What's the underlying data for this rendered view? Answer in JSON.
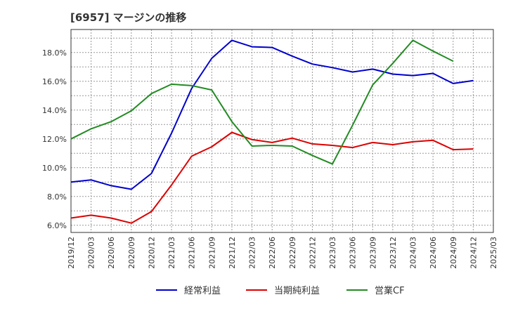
{
  "chart_data": {
    "type": "line",
    "title": "[6957]  マージンの推移",
    "xlabel": "",
    "ylabel": "",
    "ylim": [
      5.5,
      19.6
    ],
    "y_ticks": [
      "6.0%",
      "8.0%",
      "10.0%",
      "12.0%",
      "14.0%",
      "16.0%",
      "18.0%"
    ],
    "y_tick_values": [
      6,
      8,
      10,
      12,
      14,
      16,
      18
    ],
    "x_ticks": [
      "2019/12",
      "2020/03",
      "2020/06",
      "2020/09",
      "2020/12",
      "2021/03",
      "2021/06",
      "2021/09",
      "2021/12",
      "2022/03",
      "2022/06",
      "2022/09",
      "2022/12",
      "2023/03",
      "2023/06",
      "2023/09",
      "2023/12",
      "2024/03",
      "2024/06",
      "2024/09",
      "2024/12",
      "2025/03"
    ],
    "grid": true,
    "legend_position": "bottom",
    "series": [
      {
        "name": "経常利益",
        "color": "#0000cc",
        "values": [
          9.0,
          9.15,
          8.75,
          8.5,
          9.6,
          12.4,
          15.5,
          17.6,
          18.85,
          18.4,
          18.35,
          17.75,
          17.2,
          16.95,
          16.65,
          16.85,
          16.5,
          16.4,
          16.55,
          15.85,
          16.05,
          null
        ]
      },
      {
        "name": "当期純利益",
        "color": "#dd0000",
        "values": [
          6.5,
          6.7,
          6.5,
          6.15,
          6.95,
          8.8,
          10.8,
          11.45,
          12.45,
          11.95,
          11.75,
          12.05,
          11.65,
          11.55,
          11.4,
          11.75,
          11.6,
          11.8,
          11.9,
          11.25,
          11.3,
          null
        ]
      },
      {
        "name": "営業CF",
        "color": "#228b22",
        "values": [
          12.0,
          12.7,
          13.2,
          13.95,
          15.15,
          15.8,
          15.7,
          15.4,
          13.2,
          11.5,
          11.55,
          11.5,
          10.85,
          10.25,
          12.95,
          15.75,
          17.25,
          18.85,
          18.1,
          17.4,
          null,
          null
        ]
      }
    ]
  }
}
